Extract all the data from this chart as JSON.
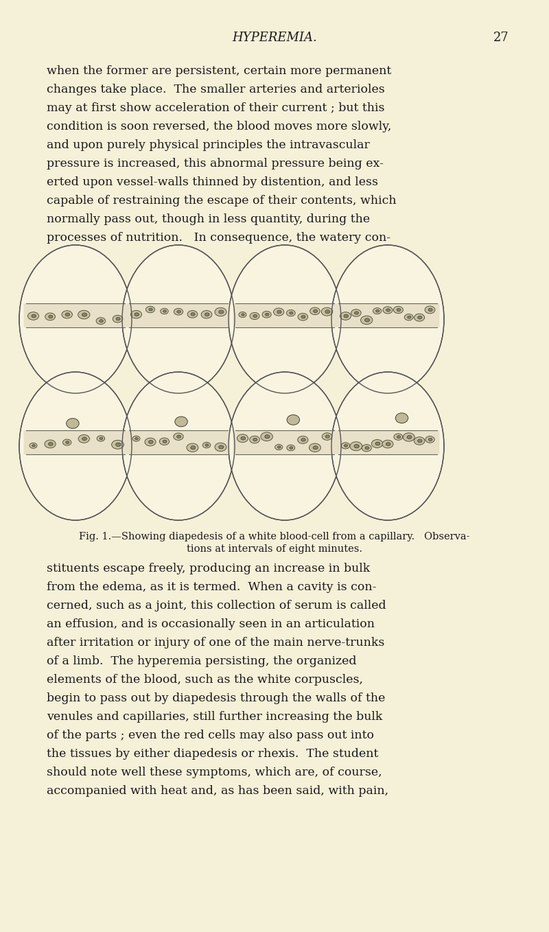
{
  "background_color": "#f5f0d8",
  "page_title": "HYPEREMIA.",
  "page_number": "27",
  "title_fontsize": 13,
  "body_fontsize": 12.5,
  "caption_fontsize": 10.5,
  "text_color": "#1a1a1a",
  "para1": "when the former are persistent, certain more permanent\nchanges take place.  The smaller arteries and arterioles\nmay at first show acceleration of their current ; but this\ncondition is soon reversed, the blood moves more slowly,\nand upon purely physical principles the intravascular\npressure is increased, this abnormal pressure being ex-\nerted upon vessel-walls thinned by distention, and less\ncapable of restraining the escape of their contents, which\nnormally pass out, though in less quantity, during the\nprocesses of nutrition.   In consequence, the watery con-",
  "para2": "stituents escape freely, producing an increase in bulk\nfrom the edema, as it is termed.  When a cavity is con-\ncerned, such as a joint, this collection of serum is called\nan effusion, and is occasionally seen in an articulation\nafter irritation or injury of one of the main nerve-trunks\nof a limb.  The hyperemia persisting, the organized\nelements of the blood, such as the white corpuscles,\nbegin to pass out by diapedesis through the walls of the\nvenules and capillaries, still further increasing the bulk\nof the parts ; even the red cells may also pass out into\nthe tissues by either diapedesis or rhexis.  The student\nshould note well these symptoms, which are, of course,\naccompanied with heat and, as has been said, with pain,",
  "fig_caption_line1": "Fig. 1.—Showing diapedesis of a white blood-cell from a capillary.   Observa-",
  "fig_caption_line2": "tions at intervals of eight minutes.",
  "oval_rows": 2,
  "oval_cols": 4,
  "oval_color": "#f8f4e0",
  "oval_edge_color": "#555555",
  "capillary_band_color": "#d4c9a0",
  "cell_color": "#888877"
}
